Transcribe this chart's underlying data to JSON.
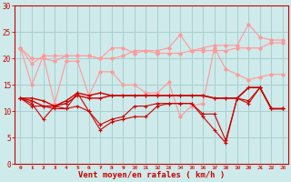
{
  "x": [
    0,
    1,
    2,
    3,
    4,
    5,
    6,
    7,
    8,
    9,
    10,
    11,
    12,
    13,
    14,
    15,
    16,
    17,
    18,
    19,
    20,
    21,
    22,
    23
  ],
  "rafale1": [
    22,
    19,
    20.5,
    20.5,
    20.5,
    20.5,
    20.5,
    20,
    22,
    22,
    21,
    21.5,
    21,
    21,
    21,
    21.5,
    21.5,
    21.5,
    21.5,
    22,
    22,
    22,
    23,
    23
  ],
  "rafale2": [
    22,
    20,
    20,
    19.5,
    20.5,
    20.5,
    20.5,
    20,
    20,
    20.5,
    21.5,
    21.5,
    21.5,
    22,
    24.5,
    21.5,
    22,
    22.5,
    22.5,
    22.5,
    26.5,
    24,
    23.5,
    23.5
  ],
  "rafale3": [
    22,
    15,
    20.5,
    11.5,
    19.5,
    19.5,
    13,
    17.5,
    17.5,
    15,
    15,
    13.5,
    13.5,
    15.5,
    9,
    11,
    11.5,
    22,
    18,
    17,
    16,
    16.5,
    17,
    17
  ],
  "moyen1": [
    12.5,
    12.5,
    12,
    11,
    12,
    13.5,
    13,
    13.5,
    13,
    13,
    13,
    13,
    13,
    13,
    13,
    13,
    13,
    12.5,
    12.5,
    12.5,
    14.5,
    14.5,
    10.5,
    10.5
  ],
  "moyen2": [
    12.5,
    12,
    11,
    11,
    11.5,
    13,
    12.5,
    12.5,
    13,
    13,
    13,
    13,
    13,
    13,
    13,
    13,
    13,
    12.5,
    12.5,
    12.5,
    14.5,
    14.5,
    10.5,
    10.5
  ],
  "moyen3": [
    12.5,
    11.5,
    8.5,
    11,
    10.5,
    13.5,
    10,
    6.5,
    8,
    8.5,
    9,
    9,
    11,
    11.5,
    11.5,
    11.5,
    9,
    6.5,
    4,
    12.5,
    12,
    14.5,
    10.5,
    10.5
  ],
  "moyen4": [
    12.5,
    11,
    11,
    10.5,
    10.5,
    11,
    10,
    7.5,
    8.5,
    9,
    11,
    11,
    11.5,
    11.5,
    11.5,
    11.5,
    9.5,
    9.5,
    4.5,
    12.5,
    11.5,
    14.5,
    10.5,
    10.5
  ],
  "bg_color": "#ceeaea",
  "grid_color": "#aacfcf",
  "dark_red": "#cc0000",
  "light_red": "#ff9999",
  "medium_red": "#ff6666",
  "xlabel": "Vent moyen/en rafales ( km/h )",
  "ylim": [
    0,
    30
  ],
  "yticks": [
    0,
    5,
    10,
    15,
    20,
    25,
    30
  ]
}
